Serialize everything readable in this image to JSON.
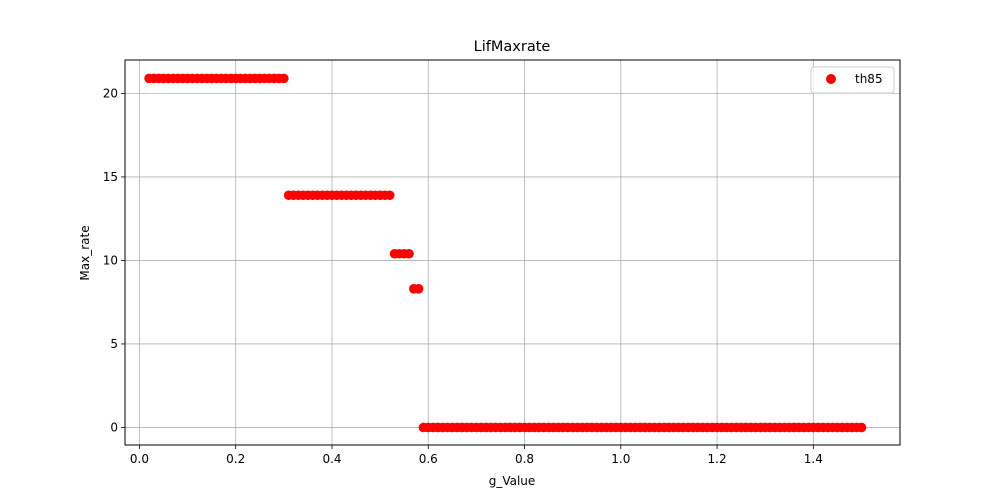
{
  "chart_data": {
    "type": "scatter",
    "title": "LifMaxrate",
    "xlabel": "g_Value",
    "ylabel": "Max_rate",
    "xlim": [
      -0.03,
      1.58
    ],
    "ylim": [
      -1.05,
      22.0
    ],
    "xticks": [
      0.0,
      0.2,
      0.4,
      0.6,
      0.8,
      1.0,
      1.2,
      1.4
    ],
    "xtick_labels": [
      "0.0",
      "0.2",
      "0.4",
      "0.6",
      "0.8",
      "1.0",
      "1.2",
      "1.4"
    ],
    "yticks": [
      0,
      5,
      10,
      15,
      20
    ],
    "ytick_labels": [
      "0",
      "5",
      "10",
      "15",
      "20"
    ],
    "grid": true,
    "legend_position": "top-right",
    "series": [
      {
        "name": "th85",
        "color": "#ff0000",
        "marker": "circle",
        "segments": [
          {
            "x_start": 0.02,
            "x_end": 0.3,
            "step": 0.01,
            "y": 20.9
          },
          {
            "x_start": 0.31,
            "x_end": 0.52,
            "step": 0.01,
            "y": 13.9
          },
          {
            "x_start": 0.53,
            "x_end": 0.56,
            "step": 0.01,
            "y": 10.4
          },
          {
            "x_start": 0.57,
            "x_end": 0.58,
            "step": 0.01,
            "y": 8.3
          },
          {
            "x_start": 0.59,
            "x_end": 1.5,
            "step": 0.01,
            "y": 0.0
          }
        ]
      }
    ]
  }
}
